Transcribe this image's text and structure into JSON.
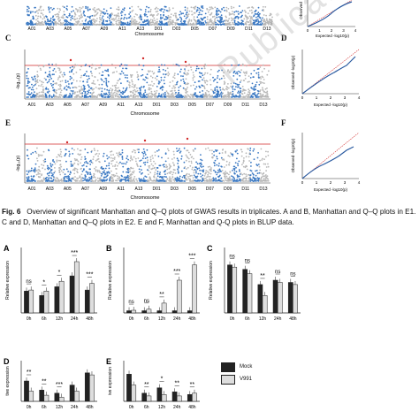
{
  "figure": {
    "manhattan_panels": [
      {
        "letter": "",
        "xlabel": "Chromosome"
      },
      {
        "letter": "C",
        "xlabel": "Chromosome",
        "ylabel": "-log₁₀(p)"
      },
      {
        "letter": "E",
        "xlabel": "Chromosome",
        "ylabel": "-log₁₀(p)"
      }
    ],
    "qq_panels": [
      {
        "letter": "",
        "xlabel": "Expected -log10(p)",
        "ylabel": "Observed"
      },
      {
        "letter": "D",
        "xlabel": "Expected -log10(p)",
        "ylabel": "Observed -log10(p)"
      },
      {
        "letter": "F",
        "xlabel": "Expected -log10(p)",
        "ylabel": "Observed -log10(p)"
      }
    ],
    "chromosome_ticks": [
      "A01",
      "A03",
      "A05",
      "A07",
      "A09",
      "A11",
      "A13",
      "D01",
      "D03",
      "D05",
      "D07",
      "D09",
      "D11",
      "D13"
    ],
    "chromosome_ticks_top": [
      "A01",
      "A03",
      "A05",
      "A07",
      "A09",
      "A11",
      "A13",
      "D01",
      "D03",
      "D05",
      "D07",
      "D09",
      "D11",
      "D13"
    ],
    "qq_ticks": [
      "0",
      "1",
      "2",
      "3",
      "4"
    ],
    "caption": {
      "label": "Fig. 6",
      "text": "Overview of significant Manhattan and Q–Q plots of GWAS results in triplicates. A and B, Manhattan and Q–Q plots in E1. C and D, Manhattan and Q–Q plots in E2. E and F, Manhattan and Q-Q plots in BLUP data."
    },
    "watermark": "Publication",
    "legend": {
      "mock": "Mock",
      "v991": "V991"
    },
    "colors": {
      "blue": "#3a78c2",
      "gray": "#b8b8b8",
      "threshold": "#d22a2a",
      "dark_bar": "#222222",
      "light_bar": "#dedede"
    }
  },
  "chart_data": [
    {
      "type": "bar",
      "letter": "A",
      "ylabel": "Relative expression",
      "categories": [
        "0h",
        "6h",
        "12h",
        "24h",
        "48h"
      ],
      "series": [
        {
          "name": "Mock",
          "values": [
            1.0,
            0.8,
            1.2,
            1.7,
            1.05
          ]
        },
        {
          "name": "V991",
          "values": [
            1.05,
            1.0,
            1.45,
            2.35,
            1.35
          ]
        }
      ],
      "significance": [
        "ns",
        "*",
        "*",
        "***",
        "***"
      ],
      "ylim": [
        0,
        3
      ]
    },
    {
      "type": "bar",
      "letter": "B",
      "ylabel": "Relative expression",
      "categories": [
        "0h",
        "6h",
        "12h",
        "24h",
        "48h"
      ],
      "series": [
        {
          "name": "Mock",
          "values": [
            1.0,
            1.0,
            1.0,
            1.0,
            1.0
          ]
        },
        {
          "name": "V991",
          "values": [
            1.2,
            1.7,
            4.5,
            15.0,
            22.0
          ]
        }
      ],
      "significance": [
        "ns",
        "ns",
        "**",
        "***",
        "***"
      ],
      "ylim": [
        0,
        30
      ]
    },
    {
      "type": "bar",
      "letter": "C",
      "ylabel": "Relative expression",
      "categories": [
        "0h",
        "6h",
        "12h",
        "24h",
        "48h"
      ],
      "series": [
        {
          "name": "Mock",
          "values": [
            1.1,
            1.0,
            0.65,
            0.75,
            0.7
          ]
        },
        {
          "name": "V991",
          "values": [
            1.05,
            0.9,
            0.4,
            0.7,
            0.65
          ]
        }
      ],
      "significance": [
        "ns",
        "ns",
        "**",
        "ns",
        "ns"
      ],
      "ylim": [
        0,
        1.5
      ]
    },
    {
      "type": "bar",
      "letter": "D",
      "ylabel": "tive expression",
      "categories": [
        "0h",
        "6h",
        "12h",
        "24h",
        "48h"
      ],
      "series": [
        {
          "name": "Mock",
          "values": [
            1.0,
            0.55,
            0.4,
            0.8,
            1.4
          ]
        },
        {
          "name": "V991",
          "values": [
            0.5,
            0.3,
            0.2,
            0.5,
            1.3
          ]
        }
      ],
      "significance": [
        "**",
        "**",
        "***",
        "",
        ""
      ],
      "ylim": [
        0,
        2
      ]
    },
    {
      "type": "bar",
      "letter": "E",
      "ylabel": "ive expression",
      "categories": [
        "0h",
        "6h",
        "12h",
        "24h",
        "48h"
      ],
      "series": [
        {
          "name": "Mock",
          "values": [
            1.0,
            0.3,
            0.5,
            0.35,
            0.25
          ]
        },
        {
          "name": "V991",
          "values": [
            0.6,
            0.2,
            0.25,
            0.2,
            0.3
          ]
        }
      ],
      "significance": [
        "",
        "**",
        "*",
        "**",
        "**"
      ],
      "ylim": [
        0,
        1.5
      ]
    }
  ]
}
